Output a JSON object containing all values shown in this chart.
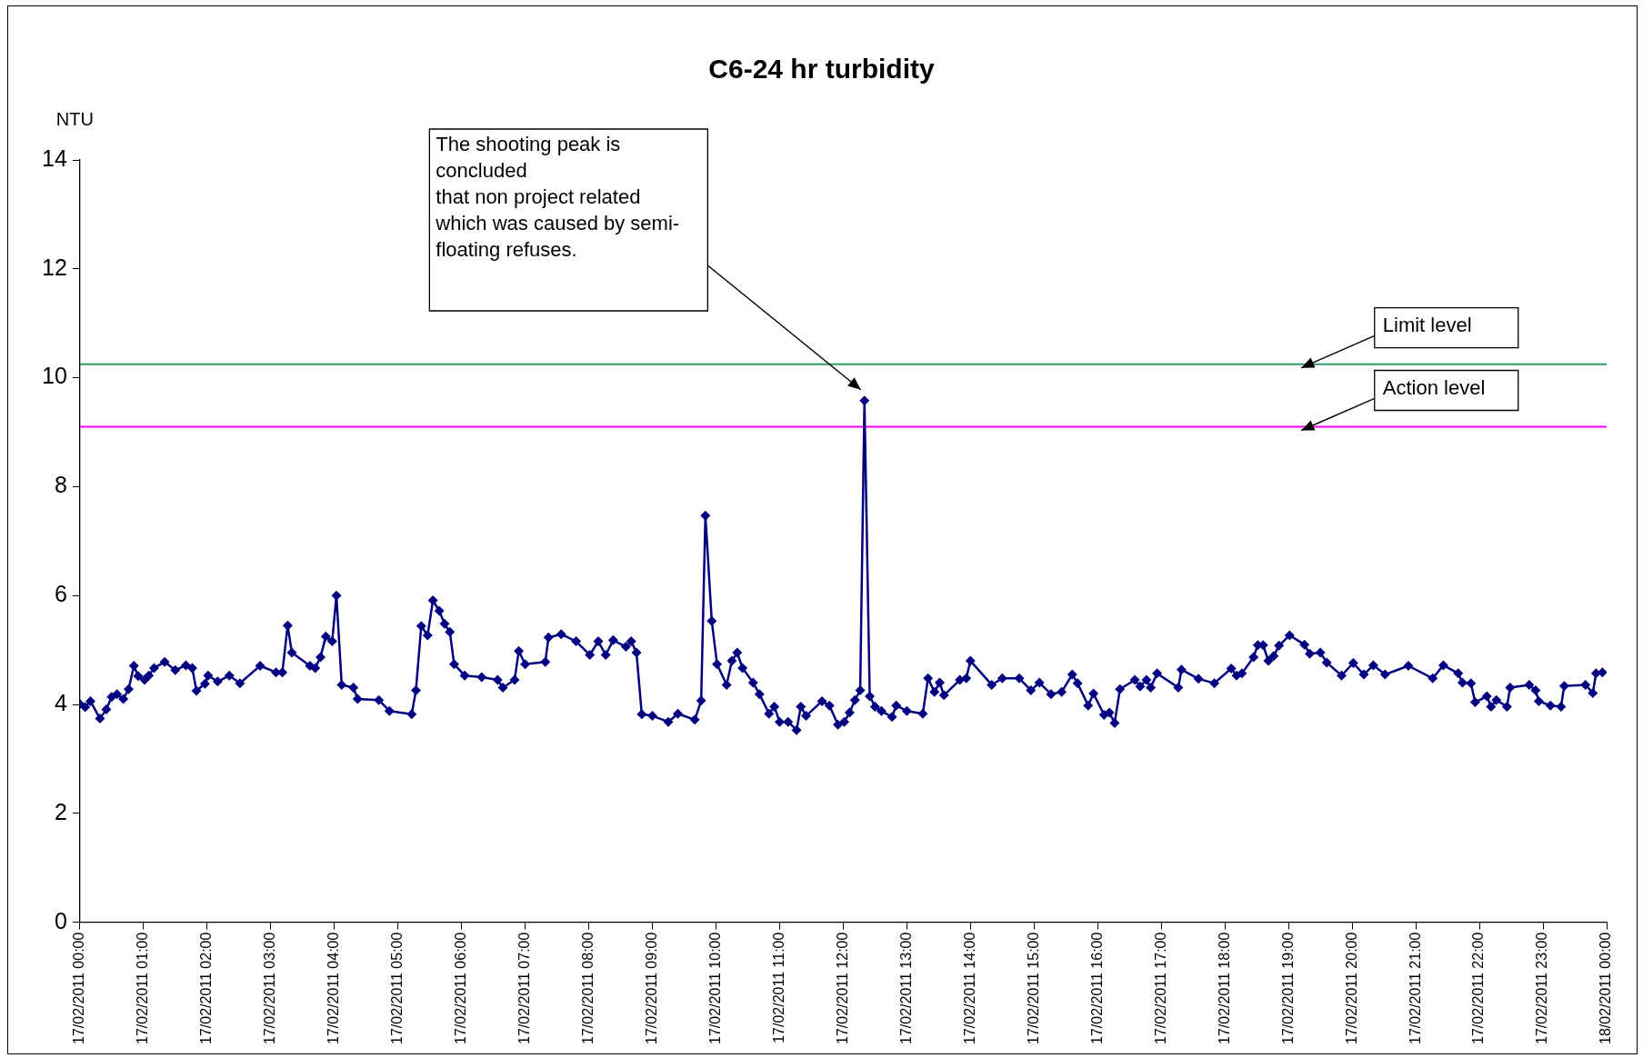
{
  "chart_data": {
    "type": "line",
    "title": "C6-24 hr turbidity",
    "ylabel": "NTU",
    "x": [
      "2011-02-17T00:00",
      "2011-02-17T00:05",
      "2011-02-17T00:10",
      "2011-02-17T00:19",
      "2011-02-17T00:25",
      "2011-02-17T00:30",
      "2011-02-17T00:35",
      "2011-02-17T00:41",
      "2011-02-17T00:46",
      "2011-02-17T00:51",
      "2011-02-17T00:55",
      "2011-02-17T01:01",
      "2011-02-17T01:05",
      "2011-02-17T01:10",
      "2011-02-17T01:20",
      "2011-02-17T01:30",
      "2011-02-17T01:40",
      "2011-02-17T01:46",
      "2011-02-17T01:50",
      "2011-02-17T01:58",
      "2011-02-17T02:01",
      "2011-02-17T02:10",
      "2011-02-17T02:21",
      "2011-02-17T02:31",
      "2011-02-17T02:50",
      "2011-02-17T03:05",
      "2011-02-17T03:11",
      "2011-02-17T03:16",
      "2011-02-17T03:20",
      "2011-02-17T03:37",
      "2011-02-17T03:42",
      "2011-02-17T03:47",
      "2011-02-17T03:52",
      "2011-02-17T03:58",
      "2011-02-17T04:02",
      "2011-02-17T04:07",
      "2011-02-17T04:18",
      "2011-02-17T04:22",
      "2011-02-17T04:42",
      "2011-02-17T04:52",
      "2011-02-17T05:13",
      "2011-02-17T05:17",
      "2011-02-17T05:22",
      "2011-02-17T05:28",
      "2011-02-17T05:33",
      "2011-02-17T05:39",
      "2011-02-17T05:44",
      "2011-02-17T05:49",
      "2011-02-17T05:53",
      "2011-02-17T06:03",
      "2011-02-17T06:19",
      "2011-02-17T06:34",
      "2011-02-17T06:39",
      "2011-02-17T06:50",
      "2011-02-17T06:54",
      "2011-02-17T07:00",
      "2011-02-17T07:19",
      "2011-02-17T07:22",
      "2011-02-17T07:34",
      "2011-02-17T07:48",
      "2011-02-17T08:01",
      "2011-02-17T08:09",
      "2011-02-17T08:16",
      "2011-02-17T08:23",
      "2011-02-17T08:35",
      "2011-02-17T08:40",
      "2011-02-17T08:45",
      "2011-02-17T08:50",
      "2011-02-17T09:00",
      "2011-02-17T09:15",
      "2011-02-17T09:24",
      "2011-02-17T09:40",
      "2011-02-17T09:46",
      "2011-02-17T09:50",
      "2011-02-17T09:56",
      "2011-02-17T10:01",
      "2011-02-17T10:10",
      "2011-02-17T10:15",
      "2011-02-17T10:20",
      "2011-02-17T10:25",
      "2011-02-17T10:35",
      "2011-02-17T10:41",
      "2011-02-17T10:50",
      "2011-02-17T10:55",
      "2011-02-17T11:00",
      "2011-02-17T11:08",
      "2011-02-17T11:16",
      "2011-02-17T11:20",
      "2011-02-17T11:25",
      "2011-02-17T11:40",
      "2011-02-17T11:47",
      "2011-02-17T11:55",
      "2011-02-17T12:01",
      "2011-02-17T12:06",
      "2011-02-17T12:11",
      "2011-02-17T12:16",
      "2011-02-17T12:20",
      "2011-02-17T12:25",
      "2011-02-17T12:30",
      "2011-02-17T12:36",
      "2011-02-17T12:46",
      "2011-02-17T12:50",
      "2011-02-17T13:00",
      "2011-02-17T13:15",
      "2011-02-17T13:20",
      "2011-02-17T13:26",
      "2011-02-17T13:31",
      "2011-02-17T13:35",
      "2011-02-17T13:50",
      "2011-02-17T13:56",
      "2011-02-17T14:00",
      "2011-02-17T14:20",
      "2011-02-17T14:30",
      "2011-02-17T14:46",
      "2011-02-17T14:57",
      "2011-02-17T15:05",
      "2011-02-17T15:16",
      "2011-02-17T15:26",
      "2011-02-17T15:36",
      "2011-02-17T15:41",
      "2011-02-17T15:51",
      "2011-02-17T15:56",
      "2011-02-17T16:06",
      "2011-02-17T16:11",
      "2011-02-17T16:16",
      "2011-02-17T16:21",
      "2011-02-17T16:35",
      "2011-02-17T16:40",
      "2011-02-17T16:46",
      "2011-02-17T16:50",
      "2011-02-17T16:56",
      "2011-02-17T17:16",
      "2011-02-17T17:19",
      "2011-02-17T17:35",
      "2011-02-17T17:50",
      "2011-02-17T18:06",
      "2011-02-17T18:11",
      "2011-02-17T18:16",
      "2011-02-17T18:27",
      "2011-02-17T18:31",
      "2011-02-17T18:36",
      "2011-02-17T18:41",
      "2011-02-17T18:46",
      "2011-02-17T18:51",
      "2011-02-17T19:01",
      "2011-02-17T19:15",
      "2011-02-17T19:20",
      "2011-02-17T19:30",
      "2011-02-17T19:36",
      "2011-02-17T19:50",
      "2011-02-17T20:01",
      "2011-02-17T20:11",
      "2011-02-17T20:20",
      "2011-02-17T20:31",
      "2011-02-17T20:53",
      "2011-02-17T21:16",
      "2011-02-17T21:26",
      "2011-02-17T21:40",
      "2011-02-17T21:44",
      "2011-02-17T21:52",
      "2011-02-17T21:56",
      "2011-02-17T22:07",
      "2011-02-17T22:11",
      "2011-02-17T22:16",
      "2011-02-17T22:26",
      "2011-02-17T22:29",
      "2011-02-17T22:47",
      "2011-02-17T22:53",
      "2011-02-17T22:56",
      "2011-02-17T23:07",
      "2011-02-17T23:17",
      "2011-02-17T23:20",
      "2011-02-17T23:40",
      "2011-02-17T23:47",
      "2011-02-17T23:50",
      "2011-02-17T23:56"
    ],
    "series": [
      {
        "color": "#000080",
        "values": [
          4.01,
          3.95,
          4.06,
          3.74,
          3.91,
          4.14,
          4.19,
          4.1,
          4.28,
          4.71,
          4.52,
          4.45,
          4.53,
          4.67,
          4.78,
          4.63,
          4.72,
          4.67,
          4.25,
          4.38,
          4.53,
          4.42,
          4.53,
          4.39,
          4.71,
          4.59,
          4.59,
          5.45,
          4.95,
          4.71,
          4.67,
          4.87,
          5.25,
          5.16,
          6.0,
          4.36,
          4.31,
          4.1,
          4.08,
          3.88,
          3.82,
          4.26,
          5.44,
          5.27,
          5.91,
          5.72,
          5.48,
          5.33,
          4.74,
          4.53,
          4.5,
          4.45,
          4.31,
          4.45,
          4.98,
          4.74,
          4.78,
          5.23,
          5.29,
          5.16,
          4.91,
          5.16,
          4.91,
          5.18,
          5.06,
          5.16,
          4.95,
          3.82,
          3.79,
          3.68,
          3.83,
          3.72,
          4.07,
          7.47,
          5.53,
          4.74,
          4.36,
          4.8,
          4.95,
          4.67,
          4.4,
          4.19,
          3.83,
          3.96,
          3.68,
          3.68,
          3.53,
          3.96,
          3.79,
          4.06,
          3.98,
          3.63,
          3.68,
          3.85,
          4.08,
          4.26,
          9.58,
          4.15,
          3.96,
          3.88,
          3.77,
          3.98,
          3.88,
          3.83,
          4.48,
          4.23,
          4.4,
          4.17,
          4.45,
          4.48,
          4.8,
          4.36,
          4.48,
          4.48,
          4.26,
          4.4,
          4.19,
          4.23,
          4.55,
          4.39,
          3.98,
          4.2,
          3.81,
          3.85,
          3.66,
          4.28,
          4.45,
          4.33,
          4.45,
          4.31,
          4.57,
          4.31,
          4.64,
          4.47,
          4.39,
          4.66,
          4.53,
          4.57,
          4.87,
          5.09,
          5.09,
          4.8,
          4.89,
          5.08,
          5.27,
          5.1,
          4.93,
          4.95,
          4.77,
          4.53,
          4.76,
          4.55,
          4.72,
          4.55,
          4.71,
          4.48,
          4.72,
          4.57,
          4.4,
          4.39,
          4.04,
          4.15,
          3.96,
          4.08,
          3.96,
          4.31,
          4.36,
          4.26,
          4.06,
          3.98,
          3.96,
          4.34,
          4.36,
          4.21,
          4.57,
          4.59
        ]
      }
    ],
    "xlim": [
      "2011-02-17T00:00",
      "2011-02-18T00:00"
    ],
    "xticks": [
      {
        "value": "2011-02-17T00:00",
        "label": "17/02/2011 00:00"
      },
      {
        "value": "2011-02-17T01:00",
        "label": "17/02/2011 01:00"
      },
      {
        "value": "2011-02-17T02:00",
        "label": "17/02/2011 02:00"
      },
      {
        "value": "2011-02-17T03:00",
        "label": "17/02/2011 03:00"
      },
      {
        "value": "2011-02-17T04:00",
        "label": "17/02/2011 04:00"
      },
      {
        "value": "2011-02-17T05:00",
        "label": "17/02/2011 05:00"
      },
      {
        "value": "2011-02-17T06:00",
        "label": "17/02/2011 06:00"
      },
      {
        "value": "2011-02-17T07:00",
        "label": "17/02/2011 07:00"
      },
      {
        "value": "2011-02-17T08:00",
        "label": "17/02/2011 08:00"
      },
      {
        "value": "2011-02-17T09:00",
        "label": "17/02/2011 09:00"
      },
      {
        "value": "2011-02-17T10:00",
        "label": "17/02/2011 10:00"
      },
      {
        "value": "2011-02-17T11:00",
        "label": "17/02/2011 11:00"
      },
      {
        "value": "2011-02-17T12:00",
        "label": "17/02/2011 12:00"
      },
      {
        "value": "2011-02-17T13:00",
        "label": "17/02/2011 13:00"
      },
      {
        "value": "2011-02-17T14:00",
        "label": "17/02/2011 14:00"
      },
      {
        "value": "2011-02-17T15:00",
        "label": "17/02/2011 15:00"
      },
      {
        "value": "2011-02-17T16:00",
        "label": "17/02/2011 16:00"
      },
      {
        "value": "2011-02-17T17:00",
        "label": "17/02/2011 17:00"
      },
      {
        "value": "2011-02-17T18:00",
        "label": "17/02/2011 18:00"
      },
      {
        "value": "2011-02-17T19:00",
        "label": "17/02/2011 19:00"
      },
      {
        "value": "2011-02-17T20:00",
        "label": "17/02/2011 20:00"
      },
      {
        "value": "2011-02-17T21:00",
        "label": "17/02/2011 21:00"
      },
      {
        "value": "2011-02-17T22:00",
        "label": "17/02/2011 22:00"
      },
      {
        "value": "2011-02-17T23:00",
        "label": "17/02/2011 23:00"
      },
      {
        "value": "2011-02-18T00:00",
        "label": "18/02/2011 00:00"
      }
    ],
    "ylim": [
      0,
      14
    ],
    "yticks": [
      0,
      2,
      4,
      6,
      8,
      10,
      12,
      14
    ],
    "ref_lines": [
      {
        "axis": "y",
        "value": 10.25,
        "label": "Limit level",
        "color": "#339966"
      },
      {
        "axis": "y",
        "value": 9.1,
        "label": "Action level",
        "color": "#ff00ff"
      }
    ],
    "annotations": [
      "The shooting peak is\nconcluded\nthat non project related\nwhich was caused by semi-\nfloating refuses."
    ],
    "grid": false,
    "legend": false,
    "marker": "diamond",
    "line_style": "solid"
  }
}
